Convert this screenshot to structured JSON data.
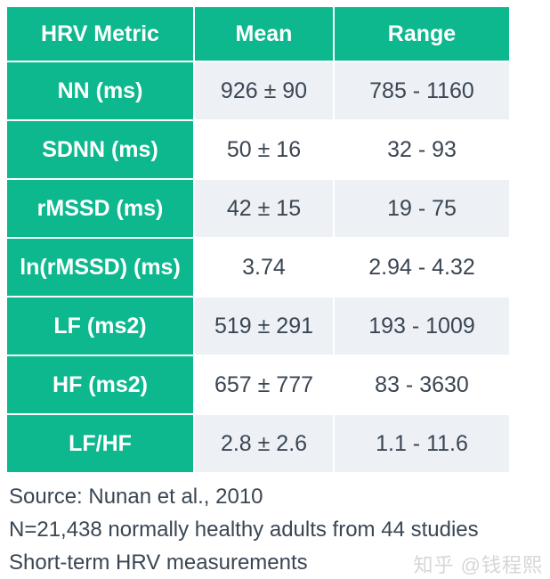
{
  "chart_data": {
    "type": "table",
    "title": "Short-term HRV measurements (Nunan et al., 2010)",
    "columns": [
      "HRV Metric",
      "Mean",
      "Range"
    ],
    "rows": [
      [
        "NN (ms)",
        "926 ± 90",
        "785 - 1160"
      ],
      [
        "SDNN (ms)",
        "50 ± 16",
        "32 - 93"
      ],
      [
        "rMSSD (ms)",
        "42 ± 15",
        "19 - 75"
      ],
      [
        "ln(rMSSD) (ms)",
        "3.74",
        "2.94 - 4.32"
      ],
      [
        "LF (ms2)",
        "519 ± 291",
        "193 - 1009"
      ],
      [
        "HF (ms2)",
        "657 ± 777",
        "83 - 3630"
      ],
      [
        "LF/HF",
        "2.8 ± 2.6",
        "1.1 - 11.6"
      ]
    ]
  },
  "footer": {
    "source": "Source: Nunan et al., 2010",
    "population": "N=21,438 normally healthy adults from 44 studies",
    "measurement": "Short-term HRV measurements",
    "watermark": "知乎 @钱程熙"
  },
  "colors": {
    "accent_green": "#0db88e",
    "row_stripe": "#edf1f6",
    "text_dark": "#3a4653",
    "watermark_gray": "#d4d6d8"
  }
}
